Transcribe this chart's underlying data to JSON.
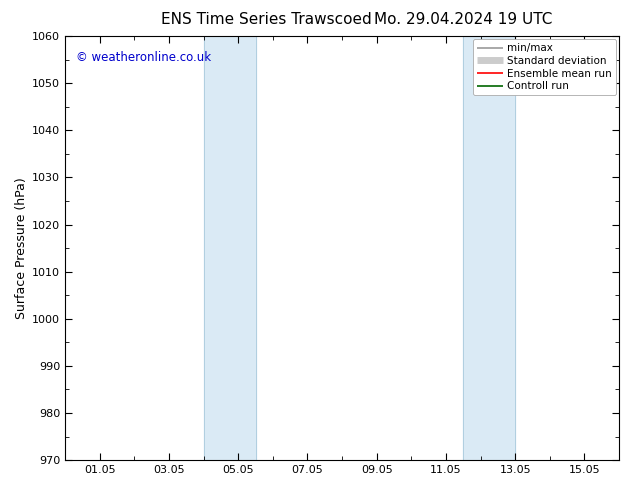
{
  "title_left": "ENS Time Series Trawscoed",
  "title_right": "Mo. 29.04.2024 19 UTC",
  "ylabel": "Surface Pressure (hPa)",
  "ylim": [
    970,
    1060
  ],
  "yticks": [
    970,
    980,
    990,
    1000,
    1010,
    1020,
    1030,
    1040,
    1050,
    1060
  ],
  "xtick_labels": [
    "01.05",
    "03.05",
    "05.05",
    "07.05",
    "09.05",
    "11.05",
    "13.05",
    "15.05"
  ],
  "xtick_positions": [
    1,
    3,
    5,
    7,
    9,
    11,
    13,
    15
  ],
  "xlim": [
    0,
    16
  ],
  "shade_bands": [
    {
      "xmin": 4.0,
      "xmax": 5.5
    },
    {
      "xmin": 11.5,
      "xmax": 13.0
    }
  ],
  "shade_color": "#daeaf5",
  "band_line_color": "#b0cfe0",
  "copyright_text": "© weatheronline.co.uk",
  "copyright_color": "#0000cc",
  "copyright_fontsize": 8.5,
  "legend_items": [
    {
      "label": "min/max",
      "color": "#999999",
      "lw": 1.2
    },
    {
      "label": "Standard deviation",
      "color": "#cccccc",
      "lw": 5
    },
    {
      "label": "Ensemble mean run",
      "color": "#ff0000",
      "lw": 1.2
    },
    {
      "label": "Controll run",
      "color": "#006600",
      "lw": 1.2
    }
  ],
  "bg_color": "#ffffff",
  "axes_bg_color": "#ffffff",
  "title_fontsize": 11,
  "tick_fontsize": 8,
  "ylabel_fontsize": 9,
  "legend_fontsize": 7.5
}
